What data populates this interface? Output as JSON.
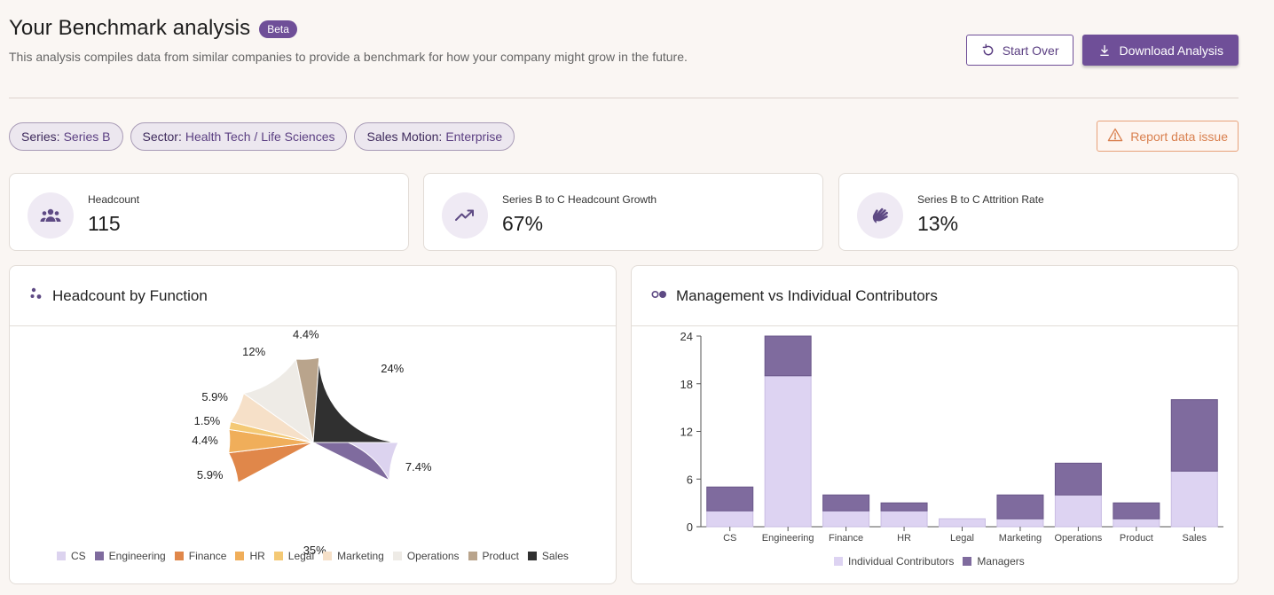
{
  "header": {
    "title": "Your Benchmark analysis",
    "badge": "Beta",
    "subtitle": "This analysis compiles data from similar companies to provide a benchmark for how your company might grow in the future."
  },
  "actions": {
    "start_over": "Start Over",
    "download": "Download Analysis",
    "report": "Report data issue"
  },
  "filters": [
    {
      "key": "Series:",
      "value": "Series B"
    },
    {
      "key": "Sector:",
      "value": "Health Tech / Life Sciences"
    },
    {
      "key": "Sales Motion:",
      "value": "Enterprise"
    }
  ],
  "kpis": [
    {
      "label": "Headcount",
      "value": "115",
      "icon": "people-icon"
    },
    {
      "label": "Series B to C Headcount Growth",
      "value": "67%",
      "icon": "trending-up-icon"
    },
    {
      "label": "Series B to C Attrition Rate",
      "value": "13%",
      "icon": "hand-wave-icon"
    }
  ],
  "pie_panel": {
    "title": "Headcount by Function"
  },
  "bar_panel": {
    "title": "Management vs Individual Contributors"
  },
  "colors": {
    "CS": "#dcd3ef",
    "Engineering": "#7f6b9e",
    "Finance": "#e0874a",
    "HR": "#f0ae5a",
    "Legal": "#f4c975",
    "Marketing": "#f6e0c8",
    "Operations": "#eeebe6",
    "Product": "#b9a48c",
    "Sales": "#303030",
    "ic": "#ddd3f2",
    "managers": "#7f6b9e"
  },
  "chart_data": [
    {
      "type": "pie",
      "title": "Headcount by Function",
      "categories": [
        "CS",
        "Engineering",
        "Finance",
        "HR",
        "Legal",
        "Marketing",
        "Operations",
        "Product",
        "Sales"
      ],
      "values": [
        7.4,
        35,
        5.9,
        4.4,
        1.5,
        5.9,
        12,
        4.4,
        24
      ],
      "labels": [
        "7.4%",
        "35%",
        "5.9%",
        "4.4%",
        "1.5%",
        "5.9%",
        "12%",
        "4.4%",
        "24%"
      ],
      "legend": "bottom"
    },
    {
      "type": "bar",
      "stacked": true,
      "title": "Management vs Individual Contributors",
      "categories": [
        "CS",
        "Engineering",
        "Finance",
        "HR",
        "Legal",
        "Marketing",
        "Operations",
        "Product",
        "Sales"
      ],
      "series": [
        {
          "name": "Individual Contributors",
          "values": [
            2,
            19,
            2,
            2,
            1,
            1,
            4,
            1,
            7
          ]
        },
        {
          "name": "Managers",
          "values": [
            3,
            5,
            2,
            1,
            0,
            3,
            4,
            2,
            9
          ]
        }
      ],
      "yticks": [
        "0",
        "6",
        "12",
        "18",
        "24"
      ],
      "ylim": [
        0,
        24
      ],
      "legend": "bottom"
    }
  ]
}
